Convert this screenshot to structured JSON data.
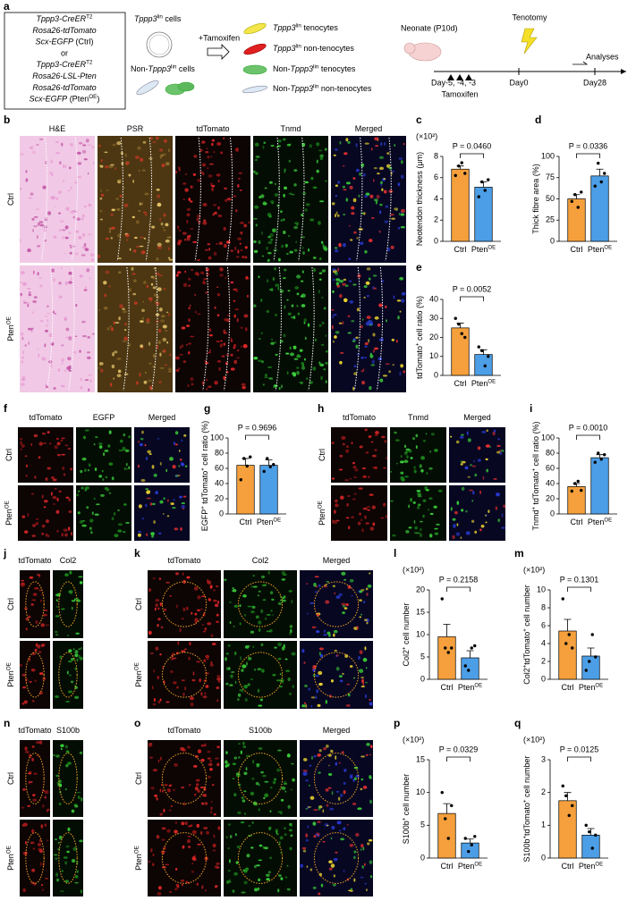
{
  "panel_labels": [
    "a",
    "b",
    "c",
    "d",
    "e",
    "f",
    "g",
    "h",
    "i",
    "j",
    "k",
    "l",
    "m",
    "n",
    "o",
    "p",
    "q"
  ],
  "schematic": {
    "genotype_lines": [
      [
        {
          "text": "Tppp3-CreER",
          "italic": true
        },
        {
          "text": "T2",
          "sup": true
        }
      ],
      [
        {
          "text": "Rosa26-tdTomato",
          "italic": true
        }
      ],
      [
        {
          "text": "Scx-EGFP",
          "italic": true
        },
        {
          "text": " (Ctrl)"
        }
      ],
      [
        {
          "text": "or"
        }
      ],
      [
        {
          "text": "Tppp3-CreER",
          "italic": true
        },
        {
          "text": "T2",
          "sup": true
        }
      ],
      [
        {
          "text": "Rosa26-LSL-Pten",
          "italic": true
        }
      ],
      [
        {
          "text": "Rosa26-tdTomato",
          "italic": true
        }
      ],
      [
        {
          "text": "Scx-EGFP",
          "italic": true
        },
        {
          "text": " (Pten"
        },
        {
          "text": "OE",
          "sup": true
        },
        {
          "text": ")"
        }
      ]
    ],
    "cell_groups": [
      [
        {
          "text": "Tppp3",
          "italic": true
        },
        {
          "text": "lin",
          "sup": true
        },
        {
          "text": " cells"
        }
      ],
      [
        {
          "text": "Non-"
        },
        {
          "text": "Tppp3",
          "italic": true
        },
        {
          "text": "lin",
          "sup": true
        },
        {
          "text": " cells"
        }
      ]
    ],
    "treatment": "+Tamoxifen",
    "legend": [
      [
        {
          "text": "Tppp3",
          "italic": true
        },
        {
          "text": "lin",
          "sup": true
        },
        {
          "text": " tenocytes"
        }
      ],
      [
        {
          "text": "Tppp3",
          "italic": true
        },
        {
          "text": "lin",
          "sup": true
        },
        {
          "text": " non-tenocytes"
        }
      ],
      [
        {
          "text": "Non-"
        },
        {
          "text": "Tppp3",
          "italic": true
        },
        {
          "text": "lin",
          "sup": true
        },
        {
          "text": " tenocytes"
        }
      ],
      [
        {
          "text": "Non-"
        },
        {
          "text": "Tppp3",
          "italic": true
        },
        {
          "text": "lin",
          "sup": true
        },
        {
          "text": " non-tenocytes"
        }
      ]
    ],
    "timeline": {
      "stage": "Neonate (P10d)",
      "event": "Tenotomy",
      "end": "Analyses",
      "days": [
        "Day-5, -4, -3",
        "Day0",
        "Day28"
      ],
      "injection": "Tamoxifen"
    }
  },
  "image_panels": [
    {
      "columns": [
        [
          {
            "text": "H&E"
          }
        ],
        [
          {
            "text": "PSR"
          }
        ],
        [
          {
            "text": "tdTomato"
          }
        ],
        [
          {
            "text": "Tnmd"
          }
        ],
        [
          {
            "text": "Merged"
          }
        ]
      ],
      "header_colors": [
        "#000000",
        "#000000",
        "#e02020",
        "#1fa01f",
        "#000000"
      ],
      "rows": [
        [
          {
            "text": "Ctrl"
          }
        ],
        [
          {
            "text": "Pten"
          },
          {
            "text": "OE",
            "sup": true
          }
        ]
      ]
    },
    {
      "columns": [
        [
          {
            "text": "tdTomato"
          }
        ],
        [
          {
            "text": "EGFP"
          }
        ],
        [
          {
            "text": "Merged"
          }
        ]
      ],
      "header_colors": [
        "#e02020",
        "#1fa01f",
        "#000000"
      ],
      "rows": [
        [
          {
            "text": "Ctrl"
          }
        ],
        [
          {
            "text": "Pten"
          },
          {
            "text": "OE",
            "sup": true
          }
        ]
      ]
    },
    {
      "columns": [
        [
          {
            "text": "tdTomato"
          }
        ],
        [
          {
            "text": "Tnmd"
          }
        ],
        [
          {
            "text": "Merged"
          }
        ]
      ],
      "header_colors": [
        "#e02020",
        "#1fa01f",
        "#000000"
      ],
      "rows": [
        [
          {
            "text": "Ctrl"
          }
        ],
        [
          {
            "text": "Pten"
          },
          {
            "text": "OE",
            "sup": true
          }
        ]
      ]
    },
    {
      "columns": [
        [
          {
            "text": "tdTomato"
          }
        ],
        [
          {
            "text": "Col2"
          }
        ]
      ],
      "header_colors": [
        "#e02020",
        "#1fa01f"
      ],
      "rows": [
        [
          {
            "text": "Ctrl"
          }
        ],
        [
          {
            "text": "Pten"
          },
          {
            "text": "OE",
            "sup": true
          }
        ]
      ]
    },
    {
      "columns": [
        [
          {
            "text": "tdTomato"
          }
        ],
        [
          {
            "text": "Col2"
          }
        ],
        [
          {
            "text": "Merged"
          }
        ]
      ],
      "header_colors": [
        "#e02020",
        "#1fa01f",
        "#000000"
      ],
      "rows": [
        [
          {
            "text": "Ctrl"
          }
        ],
        [
          {
            "text": "Pten"
          },
          {
            "text": "OE",
            "sup": true
          }
        ]
      ]
    },
    {
      "columns": [
        [
          {
            "text": "tdTomato"
          }
        ],
        [
          {
            "text": "S100b"
          }
        ]
      ],
      "header_colors": [
        "#e02020",
        "#1fa01f"
      ],
      "rows": [
        [
          {
            "text": "Ctrl"
          }
        ],
        [
          {
            "text": "Pten"
          },
          {
            "text": "OE",
            "sup": true
          }
        ]
      ]
    },
    {
      "columns": [
        [
          {
            "text": "tdTomato"
          }
        ],
        [
          {
            "text": "S100b"
          }
        ],
        [
          {
            "text": "Merged"
          }
        ]
      ],
      "header_colors": [
        "#e02020",
        "#1fa01f",
        "#000000"
      ],
      "rows": [
        [
          {
            "text": "Ctrl"
          }
        ],
        [
          {
            "text": "Pten"
          },
          {
            "text": "OE",
            "sup": true
          }
        ]
      ]
    }
  ],
  "chart_data": [
    {
      "type": "bar",
      "multiplier": "(×10²)",
      "ylabel": [
        {
          "text": "Neotendon thickness (μm)"
        }
      ],
      "categories": [
        "Ctrl",
        "Pten"
      ],
      "category_sup": [
        null,
        "OE"
      ],
      "values": [
        6.8,
        5.1
      ],
      "errors": [
        0.3,
        0.5
      ],
      "points": [
        [
          6.2,
          7.1,
          7.4,
          6.4
        ],
        [
          4.2,
          5.6,
          4.8,
          5.8
        ]
      ],
      "colors": [
        "#f5a03c",
        "#4c9ee6"
      ],
      "ylim": [
        0,
        8
      ],
      "yticks": [
        0,
        2,
        4,
        6,
        8
      ],
      "p_label": "P = 0.0460"
    },
    {
      "type": "bar",
      "ylabel": [
        {
          "text": "Thick fibre area (%)"
        }
      ],
      "categories": [
        "Ctrl",
        "Pten"
      ],
      "category_sup": [
        null,
        "OE"
      ],
      "values": [
        50,
        77
      ],
      "errors": [
        5,
        8
      ],
      "points": [
        [
          47,
          55,
          40,
          58
        ],
        [
          65,
          92,
          70,
          80
        ]
      ],
      "colors": [
        "#f5a03c",
        "#4c9ee6"
      ],
      "ylim": [
        0,
        100
      ],
      "yticks": [
        0,
        25,
        50,
        75,
        100
      ],
      "p_label": "P = 0.0336"
    },
    {
      "type": "bar",
      "ylabel": [
        {
          "text": "tdTomato"
        },
        {
          "text": "+",
          "sup": true
        },
        {
          "text": " cell ratio (%)"
        }
      ],
      "categories": [
        "Ctrl",
        "Pten"
      ],
      "category_sup": [
        null,
        "OE"
      ],
      "values": [
        25,
        11
      ],
      "errors": [
        2.5,
        2.5
      ],
      "points": [
        [
          30,
          27,
          22,
          20
        ],
        [
          15,
          13,
          5,
          10
        ]
      ],
      "colors": [
        "#f5a03c",
        "#4c9ee6"
      ],
      "ylim": [
        0,
        40
      ],
      "yticks": [
        0,
        10,
        20,
        30,
        40
      ],
      "p_label": "P = 0.0052"
    },
    {
      "type": "bar",
      "ylabel": [
        {
          "text": "EGFP"
        },
        {
          "text": "+",
          "sup": true
        },
        {
          "text": " tdTomato"
        },
        {
          "text": "+",
          "sup": true
        },
        {
          "text": " cell ratio (%)"
        }
      ],
      "categories": [
        "Ctrl",
        "Pten"
      ],
      "category_sup": [
        null,
        "OE"
      ],
      "values": [
        64,
        64
      ],
      "errors": [
        9,
        7
      ],
      "points": [
        [
          45,
          73,
          63,
          75
        ],
        [
          56,
          73,
          62,
          65
        ]
      ],
      "colors": [
        "#f5a03c",
        "#4c9ee6"
      ],
      "ylim": [
        0,
        100
      ],
      "yticks": [
        0,
        20,
        40,
        60,
        80,
        100
      ],
      "p_label": "P = 0.9696"
    },
    {
      "type": "bar",
      "ylabel": [
        {
          "text": "Tnmd"
        },
        {
          "text": "+",
          "sup": true
        },
        {
          "text": " tdTomato"
        },
        {
          "text": "+",
          "sup": true
        },
        {
          "text": " cell ratio (%)"
        }
      ],
      "categories": [
        "Ctrl",
        "Pten"
      ],
      "category_sup": [
        null,
        "OE"
      ],
      "values": [
        36,
        74
      ],
      "errors": [
        4,
        4
      ],
      "points": [
        [
          30,
          40,
          43,
          31
        ],
        [
          68,
          80,
          72,
          78
        ]
      ],
      "colors": [
        "#f5a03c",
        "#4c9ee6"
      ],
      "ylim": [
        0,
        100
      ],
      "yticks": [
        0,
        20,
        40,
        60,
        80,
        100
      ],
      "p_label": "P = 0.0010"
    },
    {
      "type": "bar",
      "multiplier": "(×10²)",
      "ylabel": [
        {
          "text": "Col2"
        },
        {
          "text": "+",
          "sup": true
        },
        {
          "text": " cell number"
        }
      ],
      "categories": [
        "Ctrl",
        "Pten"
      ],
      "category_sup": [
        null,
        "OE"
      ],
      "values": [
        9.5,
        4.8
      ],
      "errors": [
        2.8,
        1.6
      ],
      "points": [
        [
          18,
          7,
          6,
          7
        ],
        [
          3,
          2,
          7,
          7.5
        ]
      ],
      "colors": [
        "#f5a03c",
        "#4c9ee6"
      ],
      "ylim": [
        0,
        20
      ],
      "yticks": [
        0,
        5,
        10,
        15,
        20
      ],
      "p_label": "P = 0.2158"
    },
    {
      "type": "bar",
      "multiplier": "(×10²)",
      "ylabel": [
        {
          "text": "Col2"
        },
        {
          "text": "+",
          "sup": true
        },
        {
          "text": "tdTomato"
        },
        {
          "text": "+",
          "sup": true
        },
        {
          "text": " cell number"
        }
      ],
      "categories": [
        "Ctrl",
        "Pten"
      ],
      "category_sup": [
        null,
        "OE"
      ],
      "values": [
        5.4,
        2.6
      ],
      "errors": [
        1.3,
        0.9
      ],
      "points": [
        [
          9,
          4,
          5,
          3.5
        ],
        [
          1,
          2,
          5,
          2.5
        ]
      ],
      "colors": [
        "#f5a03c",
        "#4c9ee6"
      ],
      "ylim": [
        0,
        10
      ],
      "yticks": [
        0,
        2,
        4,
        6,
        8,
        10
      ],
      "p_label": "P = 0.1301"
    },
    {
      "type": "bar",
      "multiplier": "(×10²)",
      "ylabel": [
        {
          "text": "S100b"
        },
        {
          "text": "+",
          "sup": true
        },
        {
          "text": " cell number"
        }
      ],
      "categories": [
        "Ctrl",
        "Pten"
      ],
      "category_sup": [
        null,
        "OE"
      ],
      "values": [
        6.8,
        2.3
      ],
      "errors": [
        1.5,
        0.6
      ],
      "points": [
        [
          10,
          6,
          3,
          8
        ],
        [
          3,
          1,
          2,
          3.3
        ]
      ],
      "colors": [
        "#f5a03c",
        "#4c9ee6"
      ],
      "ylim": [
        0,
        15
      ],
      "yticks": [
        0,
        5,
        10,
        15
      ],
      "p_label": "P = 0.0329"
    },
    {
      "type": "bar",
      "multiplier": "(×10²)",
      "ylabel": [
        {
          "text": "S100b"
        },
        {
          "text": "+",
          "sup": true
        },
        {
          "text": "tdTomato"
        },
        {
          "text": "+",
          "sup": true
        },
        {
          "text": " cell number"
        }
      ],
      "categories": [
        "Ctrl",
        "Pten"
      ],
      "category_sup": [
        null,
        "OE"
      ],
      "values": [
        1.75,
        0.7
      ],
      "errors": [
        0.25,
        0.2
      ],
      "points": [
        [
          2.2,
          1.9,
          1.3,
          1.6
        ],
        [
          1.0,
          0.8,
          0.3,
          0.7
        ]
      ],
      "colors": [
        "#f5a03c",
        "#4c9ee6"
      ],
      "ylim": [
        0,
        3
      ],
      "yticks": [
        0,
        1,
        2,
        3
      ],
      "p_label": "P = 0.0125"
    }
  ]
}
